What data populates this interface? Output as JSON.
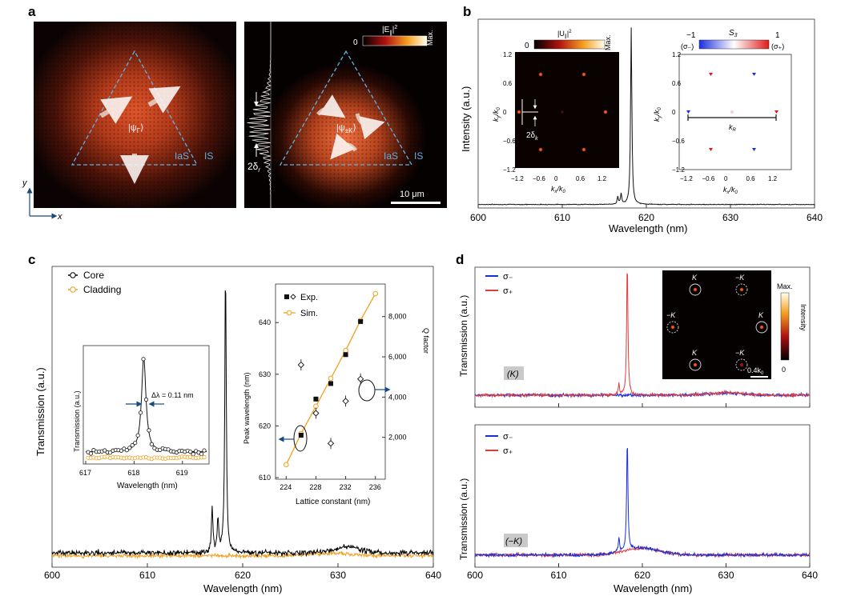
{
  "panels": {
    "a": {
      "letter": "a",
      "left_labels": {
        "psi": "|ψ",
        "psi_sub": "Γ",
        "psi_end": "⟩",
        "ias": "IaS",
        "is": "IS"
      },
      "right_labels": {
        "psi": "|ψ",
        "psi_sub": "±K",
        "psi_end": "⟩",
        "ias": "IaS",
        "is": "IS",
        "delta": "2δ",
        "delta_sub": "r"
      },
      "colorbar": {
        "min": "0",
        "max": "Max.",
        "label": "|E",
        "label_sub": "∥",
        "label_sup": "2"
      },
      "scalebar": "10 μm",
      "axis_y": "y",
      "axis_x": "x",
      "colors": {
        "field_center": "#c8401c",
        "dashed": "#4aa3d8"
      }
    },
    "b": {
      "letter": "b",
      "xlabel": "Wavelength (nm)",
      "ylabel": "Intensity (a.u.)",
      "xticks": [
        "600",
        "610",
        "620",
        "630",
        "640"
      ],
      "inset1": {
        "colorbar_min": "0",
        "colorbar_max": "Max.",
        "colorbar_label": "|U",
        "colorbar_label_sub": "∥",
        "colorbar_label_sup": "2",
        "ticks": [
          "−1.2",
          "−0.6",
          "0",
          "0.6",
          "1.2"
        ],
        "xlabel": "k",
        "xlabel_sub": "x",
        "xlabel_tail": "/k",
        "xlabel_tail_sub": "0",
        "ylabel": "k",
        "ylabel_sub": "y",
        "ylabel_tail": "/k",
        "ylabel_tail_sub": "0",
        "delta": "2δ",
        "delta_sub": "k"
      },
      "inset2": {
        "colorbar_min": "−1",
        "colorbar_max": "1",
        "colorbar_min_label": "(σ₋)",
        "colorbar_max_label": "(σ₊)",
        "colorbar_label": "S",
        "colorbar_label_sub": "3",
        "ticks": [
          "−1.2",
          "−0.6",
          "0",
          "0.6",
          "1.2"
        ],
        "xlabel": "k",
        "xlabel_sub": "x",
        "xlabel_tail": "/k",
        "xlabel_tail_sub": "0",
        "ylabel": "k",
        "ylabel_sub": "y",
        "ylabel_tail": "/k",
        "ylabel_tail_sub": "0",
        "kr": "k",
        "kr_sub": "R"
      }
    },
    "c": {
      "letter": "c",
      "xlabel": "Wavelength (nm)",
      "ylabel": "Transmission (a.u.)",
      "xticks": [
        "600",
        "610",
        "620",
        "630",
        "640"
      ],
      "legend": [
        "Core",
        "Cladding"
      ],
      "colors": {
        "core": "#000000",
        "cladding": "#f0a020"
      },
      "inset1": {
        "xlabel": "Wavelength (nm)",
        "ylabel": "Transmission (a.u.)",
        "xticks": [
          "617",
          "618",
          "619"
        ],
        "annotation": "Δλ = 0.11 nm"
      },
      "inset2": {
        "xlabel": "Lattice constant (nm)",
        "ylabel_left": "Peak wavelength (nm)",
        "ylabel_right": "Q factor",
        "xticks": [
          "224",
          "228",
          "232",
          "236"
        ],
        "yticks_left": [
          "610",
          "620",
          "630",
          "640"
        ],
        "yticks_right": [
          "2,000",
          "4,000",
          "6,000",
          "8,000"
        ],
        "legend": [
          "Exp.",
          "Sim."
        ]
      }
    },
    "d": {
      "letter": "d",
      "xlabel": "Wavelength (nm)",
      "ylabel": "Transmission (a.u.)",
      "xticks": [
        "600",
        "610",
        "620",
        "630",
        "640"
      ],
      "legend": [
        "σ₋",
        "σ₊"
      ],
      "top_tag": "(K)",
      "bottom_tag": "(−K)",
      "colors": {
        "sigma_minus": "#1a2fd8",
        "sigma_plus": "#e23a3a"
      },
      "inset": {
        "labels": [
          "K",
          "−K",
          "−K",
          "K",
          "K",
          "−K"
        ],
        "colorbar_max": "Max.",
        "colorbar_min": "0",
        "colorbar_label": "Intensity",
        "scalebar": "0.4k",
        "scalebar_sub": "0"
      }
    }
  },
  "chart_data": [
    {
      "type": "line",
      "title": "",
      "xlabel": "Wavelength (nm)",
      "ylabel": "Intensity (a.u.)",
      "xlim": [
        600,
        640
      ],
      "series": [
        {
          "peaks": [
            {
              "x": 618.2,
              "y": 1.0
            },
            {
              "x": 617.0,
              "y": 0.06
            },
            {
              "x": 616.6,
              "y": 0.04
            }
          ],
          "baseline": 0.02
        }
      ]
    },
    {
      "type": "line",
      "title": "",
      "xlabel": "Wavelength (nm)",
      "ylabel": "Transmission (a.u.)",
      "xlim": [
        600,
        640
      ],
      "series": [
        {
          "name": "Core",
          "peaks": [
            {
              "x": 618.2,
              "y": 1.0
            },
            {
              "x": 617.4,
              "y": 0.12
            },
            {
              "x": 616.8,
              "y": 0.16
            }
          ],
          "baseline": 0.03
        },
        {
          "name": "Cladding",
          "baseline": 0.02
        }
      ]
    },
    {
      "type": "line",
      "title": "",
      "xlabel": "Wavelength (nm)",
      "ylabel": "Transmission (a.u.)",
      "xlim": [
        617,
        619.5
      ],
      "series": [
        {
          "name": "Core",
          "peak_x": 618.2,
          "fwhm": 0.11
        },
        {
          "name": "Cladding",
          "baseline": 0.04
        }
      ]
    },
    {
      "type": "scatter",
      "title": "",
      "xlabel": "Lattice constant (nm)",
      "ylabel": "Peak wavelength (nm)",
      "y2label": "Q factor",
      "xlim": [
        223,
        237
      ],
      "ylim": [
        610,
        647
      ],
      "y2lim": [
        0,
        9500
      ],
      "series": [
        {
          "name": "Exp.",
          "x": [
            226,
            228,
            230,
            232,
            234
          ],
          "y": [
            618.2,
            625.2,
            628.2,
            633.8,
            640.2
          ]
        },
        {
          "name": "Sim.",
          "x": [
            224,
            226,
            228,
            230,
            232,
            234,
            236
          ],
          "y": [
            612.5,
            618.5,
            623.8,
            629.2,
            634.6,
            640.4,
            645.6
          ]
        },
        {
          "name": "Q factor (Exp.)",
          "x": [
            226,
            228,
            230,
            232,
            234
          ],
          "y": [
            5600,
            3200,
            1700,
            3800,
            4900
          ]
        }
      ]
    },
    {
      "type": "line",
      "title": "",
      "xlabel": "Wavelength (nm)",
      "ylabel": "Transmission (a.u.)",
      "xlim": [
        600,
        640
      ],
      "series": [
        {
          "name": "σ₋",
          "baseline": 0.04
        },
        {
          "name": "σ₊",
          "peaks": [
            {
              "x": 618.2,
              "y": 1.0
            },
            {
              "x": 617.2,
              "y": 0.08
            }
          ],
          "baseline": 0.04
        }
      ]
    },
    {
      "type": "line",
      "title": "",
      "xlabel": "Wavelength (nm)",
      "ylabel": "Transmission (a.u.)",
      "xlim": [
        600,
        640
      ],
      "series": [
        {
          "name": "σ₋",
          "peaks": [
            {
              "x": 618.2,
              "y": 0.82
            },
            {
              "x": 617.2,
              "y": 0.1
            }
          ],
          "baseline": 0.04
        },
        {
          "name": "σ₊",
          "baseline": 0.04
        }
      ]
    }
  ]
}
